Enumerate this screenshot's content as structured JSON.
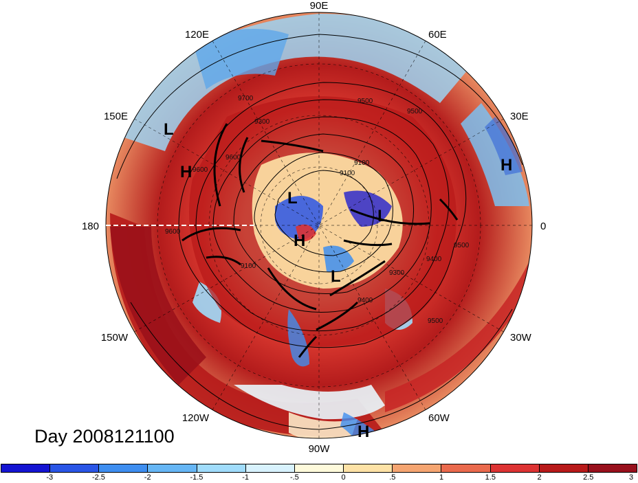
{
  "title": "Day 2008121100",
  "longitude_labels": {
    "lon_90e": "90E",
    "lon_60e": "60E",
    "lon_30e": "30E",
    "lon_0": "0",
    "lon_30w": "30W",
    "lon_60w": "60W",
    "lon_90w": "90W",
    "lon_120w": "120W",
    "lon_150w": "150W",
    "lon_180": "180",
    "lon_150e": "150E",
    "lon_120e": "120E"
  },
  "pressure_centers": [
    {
      "label": "L",
      "name": "low-center-east-asia"
    },
    {
      "label": "H",
      "name": "high-center-east-asia"
    },
    {
      "label": "H",
      "name": "high-center-europe"
    },
    {
      "label": "L",
      "name": "low-center-siberia"
    },
    {
      "label": "L",
      "name": "low-center-scandinavia"
    },
    {
      "label": "H",
      "name": "high-center-pole"
    },
    {
      "label": "L",
      "name": "low-center-canada"
    },
    {
      "label": "H",
      "name": "high-center-south-atlantic"
    }
  ],
  "contour_labels": [
    "9700",
    "9500",
    "9500",
    "9300",
    "9100",
    "9600",
    "9600",
    "9100",
    "9300",
    "9400",
    "9400",
    "9500",
    "9500",
    "9600",
    "9100"
  ],
  "colorbar": {
    "colors": [
      "#1414d2",
      "#2a55e6",
      "#3e8ef0",
      "#66b6f5",
      "#a0dcfb",
      "#d8f2fd",
      "#fefadb",
      "#fde2a6",
      "#f5a571",
      "#ea6a4d",
      "#dd3333",
      "#b81a1a",
      "#98101c"
    ],
    "tick_labels": [
      "-3",
      "-2.5",
      "-2",
      "-1.5",
      "-1",
      "-.5",
      "0",
      ".5",
      "1",
      "1.5",
      "2",
      "2.5",
      "3"
    ]
  }
}
